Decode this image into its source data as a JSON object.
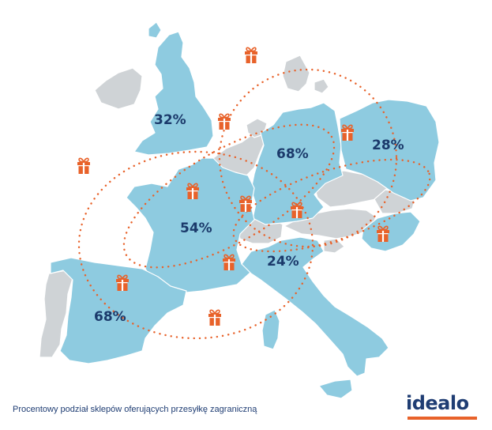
{
  "colors": {
    "highlight": "#8ecbe0",
    "other": "#cfd3d6",
    "border": "#ffffff",
    "label": "#1b3a6b",
    "accent": "#e8622a"
  },
  "countries": [
    {
      "name": "uk",
      "pct": "32%",
      "icon": "gift-icon"
    },
    {
      "name": "germany",
      "pct": "68%",
      "icon": "gift-icon"
    },
    {
      "name": "poland",
      "pct": "28%",
      "icon": "gift-icon"
    },
    {
      "name": "france",
      "pct": "54%",
      "icon": "gift-icon"
    },
    {
      "name": "italy",
      "pct": "24%",
      "icon": "gift-icon"
    },
    {
      "name": "spain",
      "pct": "68%",
      "icon": "gift-icon"
    }
  ],
  "caption": "Procentowy podział sklepów oferujących przesyłkę zagraniczną",
  "logo": "idealo"
}
